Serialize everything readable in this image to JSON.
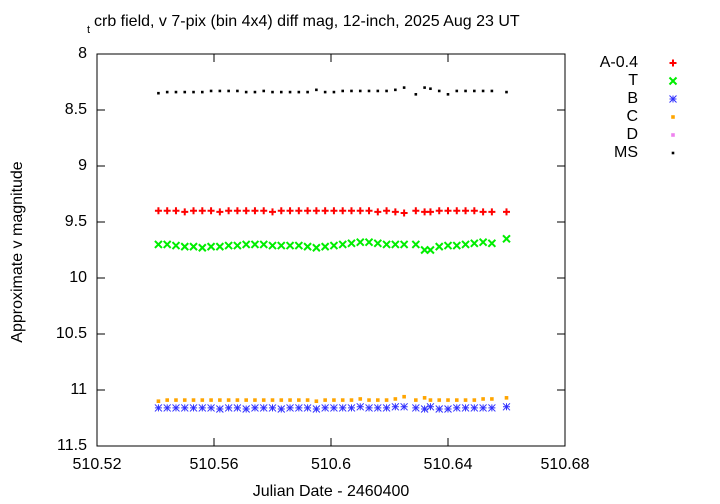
{
  "chart_data": {
    "type": "scatter",
    "title_sub": "t",
    "title": "crb field, v 7-pix (bin 4x4) diff mag, 12-inch, 2025 Aug 23 UT",
    "xlabel": "Julian Date - 2460400",
    "ylabel": "Approximate v magnitude",
    "xlim": [
      510.52,
      510.68
    ],
    "xticks": [
      510.52,
      510.56,
      510.6,
      510.64,
      510.68
    ],
    "ylim": [
      11.5,
      8
    ],
    "yticks": [
      8,
      8.5,
      9,
      9.5,
      10,
      10.5,
      11,
      11.5
    ],
    "y_reversed": true,
    "grid": false,
    "legend": "outside-right",
    "x": [
      510.541,
      510.544,
      510.547,
      510.55,
      510.553,
      510.556,
      510.559,
      510.562,
      510.565,
      510.568,
      510.571,
      510.574,
      510.577,
      510.58,
      510.583,
      510.586,
      510.589,
      510.592,
      510.595,
      510.598,
      510.601,
      510.604,
      510.607,
      510.61,
      510.613,
      510.616,
      510.619,
      510.622,
      510.625,
      510.629,
      510.632,
      510.634,
      510.637,
      510.64,
      510.643,
      510.646,
      510.649,
      510.652,
      510.655,
      510.66
    ],
    "series": [
      {
        "name": "A-0.4",
        "color": "#ff0000",
        "marker": "plus",
        "values": [
          9.4,
          9.4,
          9.4,
          9.41,
          9.4,
          9.4,
          9.4,
          9.41,
          9.4,
          9.4,
          9.4,
          9.4,
          9.4,
          9.41,
          9.4,
          9.4,
          9.4,
          9.4,
          9.4,
          9.4,
          9.4,
          9.4,
          9.4,
          9.4,
          9.4,
          9.41,
          9.4,
          9.41,
          9.42,
          9.4,
          9.41,
          9.41,
          9.4,
          9.4,
          9.4,
          9.4,
          9.4,
          9.41,
          9.41,
          9.41
        ]
      },
      {
        "name": "T",
        "color": "#00ee00",
        "marker": "cross",
        "values": [
          9.7,
          9.7,
          9.71,
          9.72,
          9.72,
          9.73,
          9.72,
          9.72,
          9.71,
          9.71,
          9.7,
          9.7,
          9.7,
          9.71,
          9.71,
          9.71,
          9.71,
          9.72,
          9.73,
          9.72,
          9.71,
          9.7,
          9.69,
          9.68,
          9.68,
          9.69,
          9.7,
          9.7,
          9.7,
          9.7,
          9.75,
          9.75,
          9.72,
          9.71,
          9.71,
          9.7,
          9.69,
          9.68,
          9.69,
          9.65
        ]
      },
      {
        "name": "B",
        "color": "#3030ff",
        "marker": "star",
        "values": [
          11.16,
          11.16,
          11.16,
          11.16,
          11.16,
          11.16,
          11.16,
          11.17,
          11.16,
          11.16,
          11.17,
          11.16,
          11.16,
          11.16,
          11.17,
          11.16,
          11.16,
          11.16,
          11.17,
          11.16,
          11.16,
          11.16,
          11.16,
          11.15,
          11.16,
          11.16,
          11.16,
          11.15,
          11.15,
          11.16,
          11.17,
          11.15,
          11.17,
          11.17,
          11.16,
          11.16,
          11.16,
          11.16,
          11.16,
          11.15
        ]
      },
      {
        "name": "C",
        "color": "#ffa500",
        "marker": "square",
        "values": [
          11.1,
          11.09,
          11.09,
          11.09,
          11.09,
          11.09,
          11.09,
          11.09,
          11.09,
          11.09,
          11.09,
          11.09,
          11.09,
          11.09,
          11.09,
          11.09,
          11.09,
          11.09,
          11.1,
          11.09,
          11.09,
          11.09,
          11.09,
          11.08,
          11.09,
          11.09,
          11.09,
          11.08,
          11.06,
          11.09,
          11.07,
          11.09,
          11.09,
          11.09,
          11.09,
          11.09,
          11.09,
          11.08,
          11.08,
          11.07
        ]
      },
      {
        "name": "D",
        "color": "#ee82ee",
        "marker": "square",
        "values": [
          null,
          null,
          null,
          null,
          null,
          null,
          null,
          null,
          null,
          null,
          null,
          null,
          null,
          null,
          null,
          null,
          null,
          null,
          null,
          null,
          null,
          null,
          null,
          null,
          null,
          null,
          null,
          null,
          null,
          null,
          null,
          null,
          null,
          null,
          null,
          null,
          null,
          null,
          null,
          null
        ]
      },
      {
        "name": "MS",
        "color": "#000000",
        "marker": "dot",
        "values": [
          8.35,
          8.34,
          8.34,
          8.34,
          8.34,
          8.34,
          8.33,
          8.33,
          8.33,
          8.33,
          8.34,
          8.34,
          8.33,
          8.34,
          8.34,
          8.34,
          8.34,
          8.34,
          8.32,
          8.34,
          8.34,
          8.33,
          8.33,
          8.33,
          8.33,
          8.33,
          8.33,
          8.32,
          8.3,
          8.36,
          8.3,
          8.31,
          8.33,
          8.36,
          8.33,
          8.33,
          8.33,
          8.33,
          8.33,
          8.34
        ]
      }
    ]
  }
}
